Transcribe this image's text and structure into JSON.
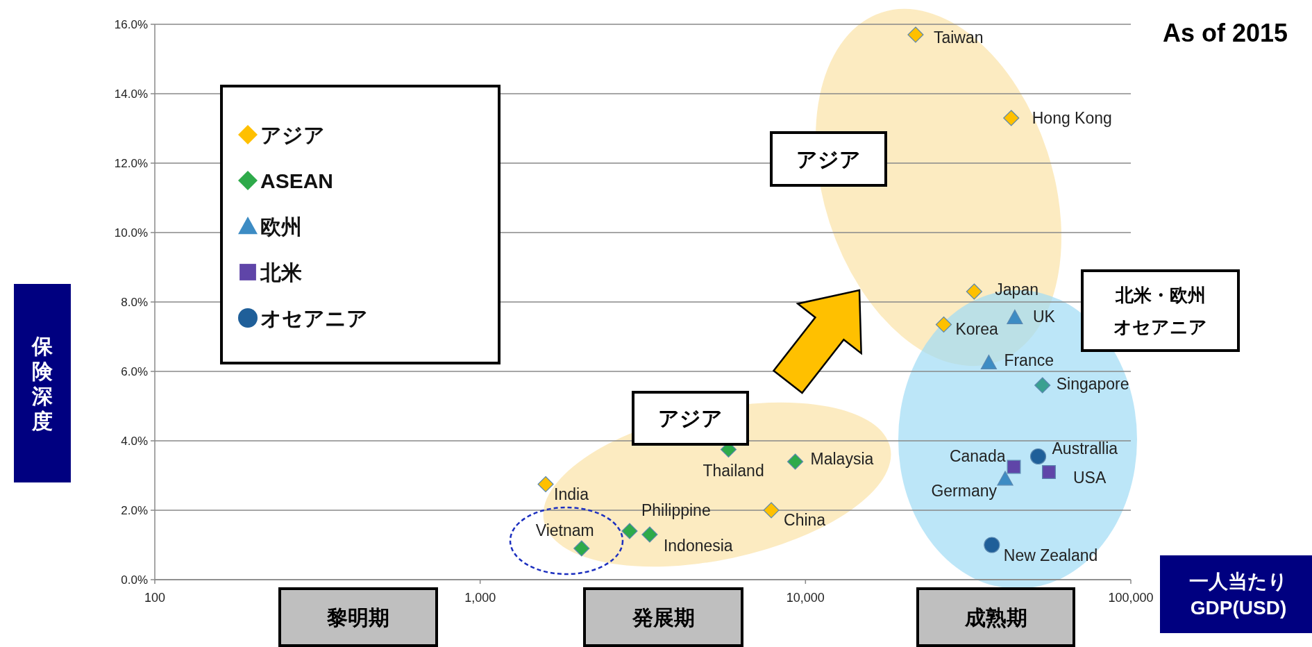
{
  "chart_data": {
    "type": "scatter",
    "title": "As of 2015",
    "xlabel": "一人当たり\nGDP(USD)",
    "ylabel": "保険深度",
    "log": "x",
    "grid": "y",
    "legend": "top left",
    "xlim": [
      100,
      100000
    ],
    "xticks": [
      {
        "value": 100,
        "label": "100"
      },
      {
        "value": 1000,
        "label": "1,000"
      },
      {
        "value": 10000,
        "label": "10,000"
      },
      {
        "value": 100000,
        "label": "100,000"
      }
    ],
    "ylim": [
      0,
      16
    ],
    "yticks": [
      {
        "value": 0,
        "label": "0.0%"
      },
      {
        "value": 2,
        "label": "2.0%"
      },
      {
        "value": 4,
        "label": "4.0%"
      },
      {
        "value": 6,
        "label": "6.0%"
      },
      {
        "value": 8,
        "label": "8.0%"
      },
      {
        "value": 10,
        "label": "10.0%"
      },
      {
        "value": 12,
        "label": "12.0%"
      },
      {
        "value": 14,
        "label": "14.0%"
      },
      {
        "value": 16,
        "label": "16.0%"
      }
    ],
    "series": [
      {
        "name": "アジア",
        "color": "#ffc000",
        "marker": "diamond",
        "x": [
          21800,
          42900,
          33000,
          26600,
          1590,
          7850
        ],
        "values": [
          15.7,
          13.3,
          8.3,
          7.35,
          2.75,
          2.0
        ]
      },
      {
        "name": "ASEAN",
        "color": "#2eaa4a",
        "marker": "diamond",
        "colors": [
          "#2eaa4a",
          "#2eaa4a",
          "#2eaa4a",
          "#2eaa4a",
          "#2eaa4a",
          "#3aa090"
        ],
        "x": [
          5800,
          9300,
          2880,
          3320,
          2050,
          53500
        ],
        "values": [
          3.75,
          3.4,
          1.4,
          1.3,
          0.9,
          5.6
        ]
      },
      {
        "name": "欧州",
        "color": "#3d8cc4",
        "marker": "triangle",
        "x": [
          44000,
          36600,
          41100
        ],
        "values": [
          7.55,
          6.25,
          2.9
        ]
      },
      {
        "name": "北米",
        "color": "#5f45a8",
        "marker": "square",
        "x": [
          43700,
          56000
        ],
        "values": [
          3.25,
          3.1
        ]
      },
      {
        "name": "オセアニア",
        "color": "#1f5f99",
        "marker": "circle",
        "x": [
          51900,
          37400
        ],
        "values": [
          3.55,
          1.0
        ]
      }
    ],
    "annotations": [
      {
        "text": "Taiwan",
        "x": 21800,
        "y": 15.7
      },
      {
        "text": "Hong Kong",
        "x": 42900,
        "y": 13.3
      },
      {
        "text": "Japan",
        "x": 33000,
        "y": 8.3
      },
      {
        "text": "Korea",
        "x": 26600,
        "y": 7.35
      },
      {
        "text": "India",
        "x": 1590,
        "y": 2.75
      },
      {
        "text": "China",
        "x": 7850,
        "y": 2.0
      },
      {
        "text": "Thailand",
        "x": 5800,
        "y": 3.75
      },
      {
        "text": "Malaysia",
        "x": 9300,
        "y": 3.4
      },
      {
        "text": "Philippine",
        "x": 2880,
        "y": 1.4
      },
      {
        "text": "Indonesia",
        "x": 3320,
        "y": 1.3
      },
      {
        "text": "Vietnam",
        "x": 2050,
        "y": 0.9
      },
      {
        "text": "Singapore",
        "x": 53500,
        "y": 5.6
      },
      {
        "text": "UK",
        "x": 44000,
        "y": 7.55
      },
      {
        "text": "France",
        "x": 36600,
        "y": 6.25
      },
      {
        "text": "Germany",
        "x": 41100,
        "y": 2.9
      },
      {
        "text": "Canada",
        "x": 43700,
        "y": 3.25
      },
      {
        "text": "USA",
        "x": 56000,
        "y": 3.1
      },
      {
        "text": "Australlia",
        "x": 51900,
        "y": 3.55
      },
      {
        "text": "New Zealand",
        "x": 37400,
        "y": 1.0
      },
      "アジア",
      "アジア",
      "北米・欧州",
      "オセアニア",
      "黎明期",
      "発展期",
      "成熟期"
    ]
  }
}
